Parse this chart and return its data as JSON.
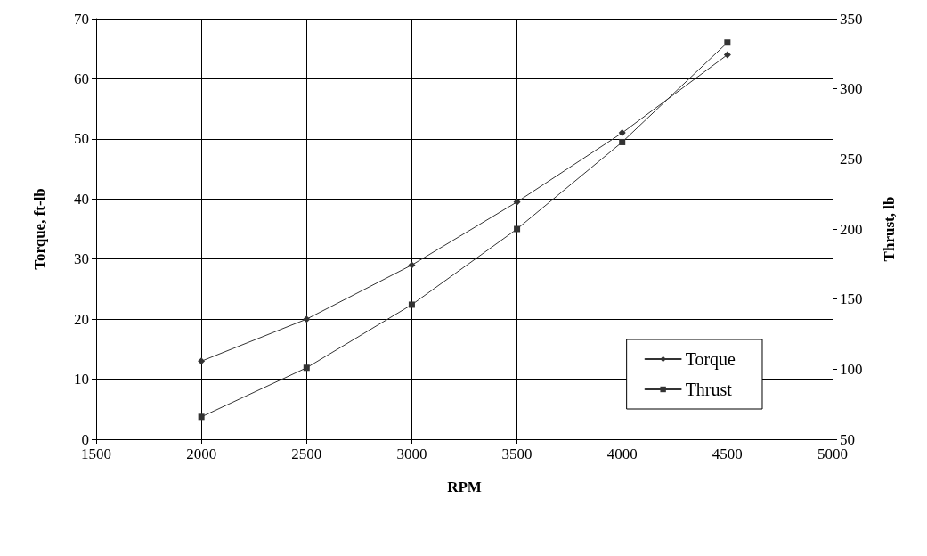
{
  "chart_data": {
    "type": "line",
    "xlabel": "RPM",
    "ylabel": "Torque, ft-lb",
    "y2label": "Thrust, lb",
    "x": [
      2000,
      2500,
      3000,
      3500,
      4000,
      4500
    ],
    "series": [
      {
        "name": "Torque",
        "color": "#333333",
        "marker": "diamond",
        "values": [
          13,
          20,
          29,
          39.5,
          51,
          64
        ]
      },
      {
        "name": "Thrust",
        "color": "#333333",
        "marker": "square",
        "axis": "y2",
        "values": [
          66,
          101,
          146,
          200,
          262,
          333
        ]
      }
    ],
    "xlim": [
      1500,
      5000
    ],
    "xticks": [
      1500,
      2000,
      2500,
      3000,
      3500,
      4000,
      4500,
      5000
    ],
    "ylim": [
      0,
      70
    ],
    "yticks": [
      0,
      10,
      20,
      30,
      40,
      50,
      60,
      70
    ],
    "y2lim": [
      50,
      350
    ],
    "y2ticks": [
      50,
      100,
      150,
      200,
      250,
      300,
      350
    ],
    "grid": true,
    "legend": "bottom right",
    "line_style": "solid"
  }
}
